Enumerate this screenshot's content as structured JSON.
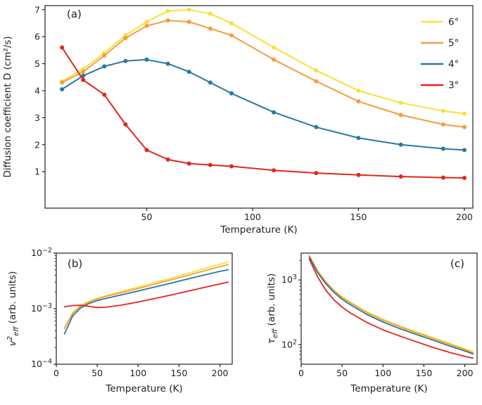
{
  "figure": {
    "background": "#ffffff",
    "axis_color": "#222222"
  },
  "chart_data": [
    {
      "id": "a",
      "type": "line",
      "panel_label": "(a)",
      "xlabel": "Temperature (K)",
      "ylabel": "Diffusion coefficient D (cm²/s)",
      "xscale": "linear",
      "yscale": "linear",
      "xlim": [
        2,
        204
      ],
      "ylim": [
        -0.35,
        7.15
      ],
      "xticks": [
        50,
        100,
        150,
        200
      ],
      "yticks": [
        1,
        2,
        3,
        4,
        5,
        6,
        7
      ],
      "markers": true,
      "legend": {
        "position": "upper-right",
        "labels": [
          "6°",
          "5°",
          "4°",
          "3°"
        ]
      },
      "x": [
        10,
        20,
        30,
        40,
        50,
        60,
        70,
        80,
        90,
        110,
        130,
        150,
        170,
        190,
        200
      ],
      "series": [
        {
          "name": "6°",
          "key": "6deg",
          "color": "#f6e13b",
          "values": [
            4.35,
            4.8,
            5.4,
            6.05,
            6.55,
            6.95,
            7.0,
            6.85,
            6.5,
            5.6,
            4.75,
            4.0,
            3.55,
            3.25,
            3.15
          ]
        },
        {
          "name": "5°",
          "key": "5deg",
          "color": "#f59d3d",
          "values": [
            4.3,
            4.7,
            5.3,
            5.95,
            6.4,
            6.6,
            6.55,
            6.3,
            6.05,
            5.15,
            4.35,
            3.6,
            3.1,
            2.75,
            2.65
          ]
        },
        {
          "name": "4°",
          "key": "4deg",
          "color": "#2878a0",
          "values": [
            4.05,
            4.55,
            4.9,
            5.1,
            5.15,
            5.0,
            4.7,
            4.3,
            3.9,
            3.2,
            2.65,
            2.25,
            2.0,
            1.85,
            1.8
          ]
        },
        {
          "name": "3°",
          "key": "3deg",
          "color": "#e4251e",
          "values": [
            5.6,
            4.4,
            3.85,
            2.75,
            1.8,
            1.45,
            1.3,
            1.25,
            1.2,
            1.05,
            0.95,
            0.88,
            0.82,
            0.78,
            0.77
          ]
        }
      ]
    },
    {
      "id": "b",
      "type": "line",
      "panel_label": "(b)",
      "xlabel": "Temperature (K)",
      "ylabel_rich": [
        {
          "t": "v",
          "i": true
        },
        {
          "t": "2",
          "sup": true,
          "i": true
        },
        {
          "t": "eff",
          "sub": true,
          "i": true
        },
        {
          "t": " (arb. units)"
        }
      ],
      "xscale": "linear",
      "yscale": "log",
      "xlim": [
        0,
        215
      ],
      "ylim": [
        0.0001,
        0.01
      ],
      "xticks": [
        0,
        50,
        100,
        150,
        200
      ],
      "yticks_log": [
        -2,
        -3,
        -4
      ],
      "markers": false,
      "x": [
        10,
        20,
        30,
        40,
        50,
        60,
        80,
        100,
        120,
        140,
        160,
        180,
        200,
        210
      ],
      "series": [
        {
          "name": "6°",
          "key": "6deg",
          "color": "#f6e13b",
          "values": [
            0.00045,
            0.00085,
            0.00115,
            0.00135,
            0.00155,
            0.0017,
            0.00205,
            0.00245,
            0.00295,
            0.00355,
            0.0043,
            0.0052,
            0.0063,
            0.0069
          ]
        },
        {
          "name": "5°",
          "key": "5deg",
          "color": "#f59d3d",
          "values": [
            0.00044,
            0.00082,
            0.00112,
            0.00132,
            0.0015,
            0.00165,
            0.00195,
            0.0023,
            0.00275,
            0.0033,
            0.00395,
            0.00475,
            0.0057,
            0.0062
          ]
        },
        {
          "name": "4°",
          "key": "4deg",
          "color": "#2878a0",
          "values": [
            0.00035,
            0.00074,
            0.00104,
            0.00124,
            0.0014,
            0.00152,
            0.00178,
            0.00208,
            0.00245,
            0.00288,
            0.0034,
            0.004,
            0.0047,
            0.005
          ]
        },
        {
          "name": "3°",
          "key": "3deg",
          "color": "#e4251e",
          "values": [
            0.00108,
            0.00114,
            0.00115,
            0.0011,
            0.00105,
            0.00106,
            0.00116,
            0.00132,
            0.00152,
            0.00176,
            0.00205,
            0.0024,
            0.0028,
            0.003
          ]
        }
      ]
    },
    {
      "id": "c",
      "type": "line",
      "panel_label": "(c)",
      "xlabel": "Temperature (K)",
      "ylabel_rich": [
        {
          "t": "τ",
          "i": true
        },
        {
          "t": "eff",
          "sub": true,
          "i": true
        },
        {
          "t": " (arb. units)"
        }
      ],
      "xscale": "linear",
      "yscale": "log",
      "xlim": [
        0,
        215
      ],
      "ylim": [
        50,
        2600
      ],
      "xticks": [
        0,
        50,
        100,
        150,
        200
      ],
      "yticks_log": [
        3,
        2
      ],
      "markers": false,
      "x": [
        10,
        20,
        30,
        40,
        50,
        60,
        80,
        100,
        120,
        140,
        160,
        180,
        200,
        210
      ],
      "series": [
        {
          "name": "6°",
          "key": "6deg",
          "color": "#f6e13b",
          "values": [
            2400,
            1400,
            950,
            700,
            550,
            455,
            325,
            248,
            196,
            160,
            131,
            107,
            87,
            78
          ]
        },
        {
          "name": "5°",
          "key": "5deg",
          "color": "#f59d3d",
          "values": [
            2350,
            1370,
            930,
            685,
            538,
            443,
            315,
            240,
            190,
            154,
            126,
            103,
            84,
            75
          ]
        },
        {
          "name": "4°",
          "key": "4deg",
          "color": "#2878a0",
          "values": [
            2250,
            1300,
            880,
            645,
            505,
            415,
            295,
            224,
            178,
            145,
            119,
            97,
            80,
            72
          ]
        },
        {
          "name": "3°",
          "key": "3deg",
          "color": "#e4251e",
          "values": [
            2100,
            1120,
            700,
            495,
            382,
            310,
            222,
            170,
            137,
            112,
            92,
            77,
            66,
            62
          ]
        }
      ]
    }
  ]
}
